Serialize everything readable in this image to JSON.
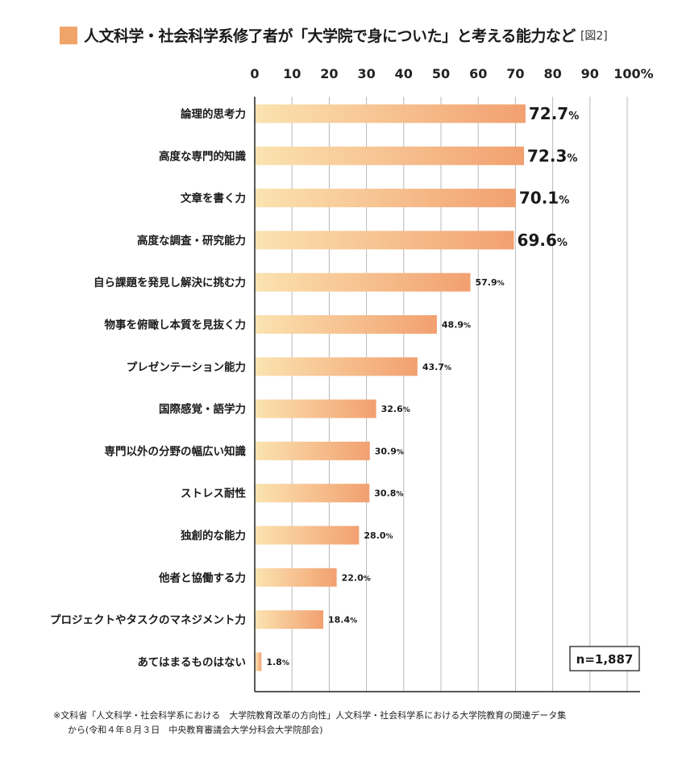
{
  "title": {
    "text": "人文科学・社会科学系修了者が「大学院で身についた」と考える能力など",
    "figure_label": "[図2]"
  },
  "colors": {
    "accent": "#f0a46a",
    "bar_gradient_start": "#fbe3b0",
    "bar_gradient_end": "#f2a070",
    "grid": "#b8b8b8",
    "axis": "#222222"
  },
  "chart_data": {
    "type": "bar",
    "orientation": "horizontal",
    "title": "人文科学・社会科学系修了者が「大学院で身についた」と考える能力など",
    "xlabel": "",
    "ylabel": "",
    "xlim": [
      0,
      100
    ],
    "x_ticks": [
      "0",
      "10",
      "20",
      "30",
      "40",
      "50",
      "60",
      "70",
      "80",
      "90",
      "100%"
    ],
    "grid": true,
    "categories": [
      "論理的思考力",
      "高度な専門的知識",
      "文章を書く力",
      "高度な調査・研究能力",
      "自ら課題を発見し解決に挑む力",
      "物事を俯瞰し本質を見抜く力",
      "プレゼンテーション能力",
      "国際感覚・語学力",
      "専門以外の分野の幅広い知識",
      "ストレス耐性",
      "独創的な能力",
      "他者と協働する力",
      "プロジェクトやタスクのマネジメント力",
      "あてはまるものはない"
    ],
    "values": [
      72.7,
      72.3,
      70.1,
      69.6,
      57.9,
      48.9,
      43.7,
      32.6,
      30.9,
      30.8,
      28.0,
      22.0,
      18.4,
      1.8
    ],
    "value_labels": [
      "72.7",
      "72.3",
      "70.1",
      "69.6",
      "57.9",
      "48.9",
      "43.7",
      "32.6",
      "30.9",
      "30.8",
      "28.0",
      "22.0",
      "18.4",
      "1.8"
    ],
    "value_suffix": "%",
    "emphasized_count": 4,
    "sample_size": "n=1,887"
  },
  "footnote": {
    "line1": "※文科省「人文科学・社会科学系における　大学院教育改革の方向性」人文科学・社会科学系における大学院教育の関連データ集",
    "line2": "から(令和４年８月３日　中央教育審議会大学分科会大学院部会)"
  }
}
